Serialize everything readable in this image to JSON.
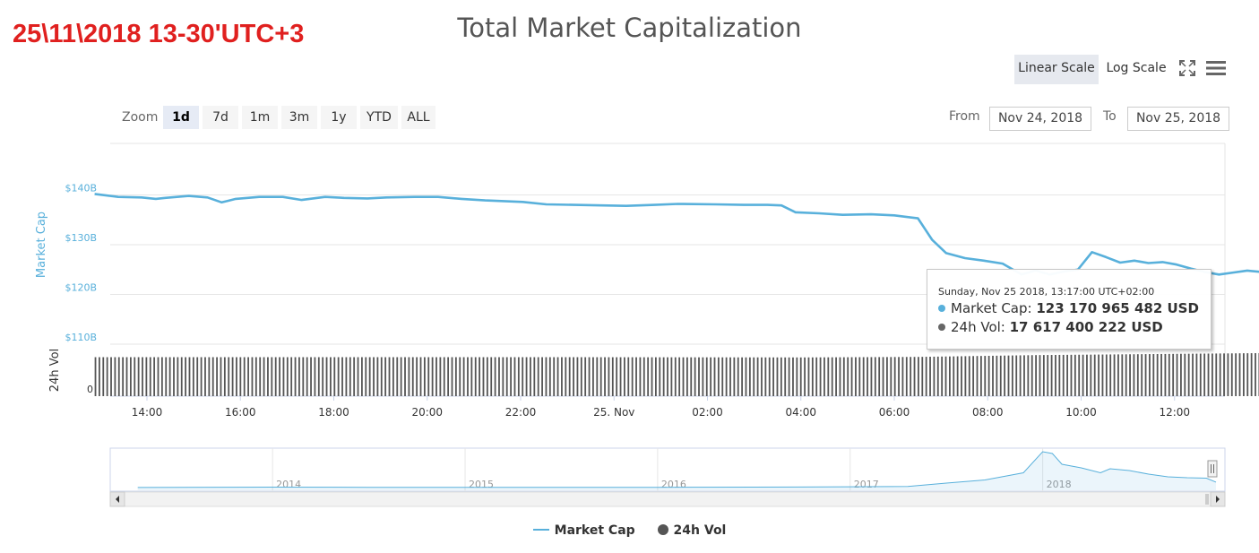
{
  "annotation": "25\\11\\2018 13-30'UTC+3",
  "toolbar": {
    "linear_label": "Linear Scale",
    "log_label": "Log Scale",
    "fullscreen_icon": "fullscreen-icon",
    "menu_icon": "hamburger-menu-icon"
  },
  "zoom": {
    "label": "Zoom",
    "buttons": [
      "1d",
      "7d",
      "1m",
      "3m",
      "1y",
      "YTD",
      "ALL"
    ],
    "active": "1d"
  },
  "range": {
    "from_label": "From",
    "from_value": "Nov 24, 2018",
    "to_label": "To",
    "to_value": "Nov 25, 2018"
  },
  "tooltip": {
    "header": "Sunday, Nov 25 2018, 13:17:00 UTC+02:00",
    "rows": [
      {
        "label": "Market Cap: ",
        "value": "123 170 965 482 USD",
        "color": "#58b0db"
      },
      {
        "label": "24h Vol: ",
        "value": "17 617 400 222 USD",
        "color": "#666666"
      }
    ]
  },
  "legend": [
    {
      "name": "Market Cap",
      "color": "#58b0db",
      "shape": "line"
    },
    {
      "name": "24h Vol",
      "color": "#555555",
      "shape": "circle"
    }
  ],
  "chart_data": {
    "type": "line",
    "title": "Total Market Capitalization",
    "ylabel": "Market Cap",
    "ylabel2": "24h Vol",
    "x_unit": "hours since 13:15 Nov 24 2018 (UTC+2)",
    "xticks": [
      "14:00",
      "16:00",
      "18:00",
      "20:00",
      "22:00",
      "25. Nov",
      "02:00",
      "04:00",
      "06:00",
      "08:00",
      "10:00",
      "12:00"
    ],
    "yticks": [
      "$110B",
      "$120B",
      "$130B",
      "$140B"
    ],
    "ytick_values": [
      110,
      120,
      130,
      140
    ],
    "ylim": [
      110,
      150
    ],
    "vol_tick": "0",
    "series": [
      {
        "name": "Market Cap",
        "unit": "billion USD",
        "color": "#58b0db",
        "points": [
          [
            0,
            140.2
          ],
          [
            0.5,
            139.6
          ],
          [
            1.0,
            139.5
          ],
          [
            1.3,
            139.2
          ],
          [
            1.5,
            139.4
          ],
          [
            2.0,
            139.8
          ],
          [
            2.4,
            139.5
          ],
          [
            2.7,
            138.5
          ],
          [
            3.0,
            139.2
          ],
          [
            3.5,
            139.6
          ],
          [
            4.0,
            139.6
          ],
          [
            4.4,
            139.0
          ],
          [
            4.9,
            139.6
          ],
          [
            5.3,
            139.4
          ],
          [
            5.8,
            139.3
          ],
          [
            6.2,
            139.5
          ],
          [
            6.8,
            139.6
          ],
          [
            7.3,
            139.6
          ],
          [
            7.8,
            139.2
          ],
          [
            8.3,
            138.9
          ],
          [
            9.1,
            138.6
          ],
          [
            9.6,
            138.1
          ],
          [
            10.2,
            138.0
          ],
          [
            10.8,
            137.9
          ],
          [
            11.3,
            137.8
          ],
          [
            11.9,
            138.0
          ],
          [
            12.4,
            138.2
          ],
          [
            13.2,
            138.1
          ],
          [
            13.8,
            138.0
          ],
          [
            14.3,
            138.0
          ],
          [
            14.6,
            137.9
          ],
          [
            14.9,
            136.5
          ],
          [
            15.4,
            136.3
          ],
          [
            15.9,
            136.0
          ],
          [
            16.5,
            136.1
          ],
          [
            17.0,
            135.9
          ],
          [
            17.5,
            135.3
          ],
          [
            17.8,
            131.0
          ],
          [
            18.1,
            128.3
          ],
          [
            18.5,
            127.3
          ],
          [
            18.9,
            126.8
          ],
          [
            19.3,
            126.2
          ],
          [
            19.7,
            124.0
          ],
          [
            20.0,
            124.8
          ],
          [
            20.3,
            124.0
          ],
          [
            20.6,
            124.6
          ],
          [
            20.9,
            125.0
          ],
          [
            21.2,
            128.5
          ],
          [
            21.5,
            127.5
          ],
          [
            21.8,
            126.4
          ],
          [
            22.1,
            126.8
          ],
          [
            22.4,
            126.3
          ],
          [
            22.7,
            126.5
          ],
          [
            23.0,
            126.0
          ],
          [
            23.3,
            125.2
          ],
          [
            23.6,
            124.5
          ],
          [
            23.9,
            124.0
          ],
          [
            24.2,
            124.4
          ],
          [
            24.5,
            124.8
          ],
          [
            24.8,
            124.5
          ],
          [
            25.1,
            124.2
          ],
          [
            25.4,
            124.7
          ],
          [
            25.7,
            124.5
          ],
          [
            26.0,
            124.6
          ],
          [
            26.3,
            124.4
          ],
          [
            26.7,
            123.6
          ],
          [
            27.0,
            123.2
          ],
          [
            27.4,
            122.9
          ],
          [
            27.7,
            122.7
          ],
          [
            28.0,
            122.0
          ],
          [
            28.3,
            122.3
          ],
          [
            28.6,
            121.8
          ],
          [
            28.9,
            121.6
          ],
          [
            29.2,
            121.0
          ],
          [
            29.5,
            120.3
          ],
          [
            29.8,
            119.4
          ],
          [
            30.1,
            119.2
          ],
          [
            30.4,
            119.6
          ],
          [
            30.7,
            120.5
          ],
          [
            31.0,
            120.7
          ],
          [
            31.3,
            120.4
          ],
          [
            31.6,
            121.0
          ],
          [
            31.9,
            120.3
          ],
          [
            35.0,
            118.2
          ],
          [
            35.5,
            116.5
          ],
          [
            35.9,
            116.7
          ],
          [
            36.3,
            117.6
          ],
          [
            36.6,
            120.5
          ],
          [
            36.9,
            123.3
          ],
          [
            37.1,
            123.2
          ]
        ]
      },
      {
        "name": "24h Vol",
        "unit": "billion USD",
        "color": "#555555",
        "range": [
          0,
          20
        ],
        "points": [
          [
            0,
            15.0
          ],
          [
            5,
            15.0
          ],
          [
            10,
            15.0
          ],
          [
            15,
            14.9
          ],
          [
            17.5,
            15.1
          ],
          [
            20,
            15.8
          ],
          [
            25,
            16.6
          ],
          [
            30,
            16.8
          ],
          [
            35,
            17.2
          ],
          [
            37.1,
            17.6
          ]
        ]
      }
    ],
    "navigator": {
      "year_labels": [
        "2014",
        "2015",
        "2016",
        "2017",
        "2018"
      ],
      "year_positions": [
        2014,
        2015,
        2016,
        2017,
        2018
      ],
      "x_range": [
        2013.25,
        2018.9
      ],
      "points": [
        [
          2013.3,
          1.5
        ],
        [
          2013.8,
          8
        ],
        [
          2014.0,
          10
        ],
        [
          2014.5,
          6
        ],
        [
          2015.0,
          4
        ],
        [
          2015.5,
          3.5
        ],
        [
          2016.0,
          6
        ],
        [
          2016.5,
          10
        ],
        [
          2017.0,
          17
        ],
        [
          2017.3,
          26
        ],
        [
          2017.5,
          100
        ],
        [
          2017.7,
          170
        ],
        [
          2017.9,
          330
        ],
        [
          2018.0,
          800
        ],
        [
          2018.05,
          760
        ],
        [
          2018.1,
          520
        ],
        [
          2018.2,
          440
        ],
        [
          2018.3,
          330
        ],
        [
          2018.35,
          420
        ],
        [
          2018.45,
          380
        ],
        [
          2018.55,
          300
        ],
        [
          2018.65,
          240
        ],
        [
          2018.75,
          220
        ],
        [
          2018.85,
          210
        ],
        [
          2018.9,
          123
        ]
      ],
      "ylim": [
        0,
        800
      ]
    }
  }
}
